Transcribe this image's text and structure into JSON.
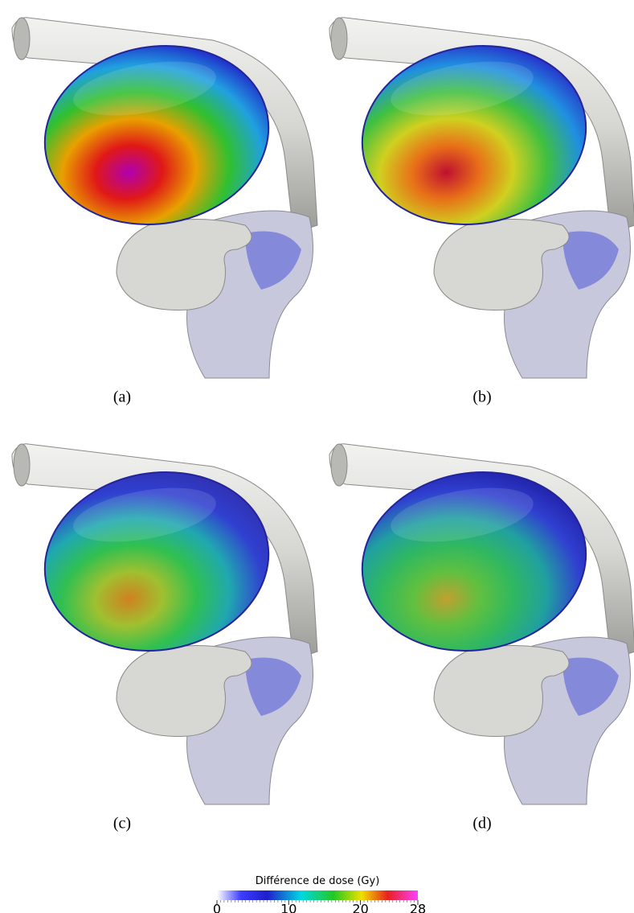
{
  "panels": [
    {
      "caption": "(a)"
    },
    {
      "caption": "(b)"
    },
    {
      "caption": "(c)"
    },
    {
      "caption": "(d)"
    }
  ],
  "colorbar": {
    "title": "Différence de dose (Gy)",
    "range": [
      0,
      28
    ],
    "ticks": [
      0,
      10,
      20,
      28
    ]
  }
}
